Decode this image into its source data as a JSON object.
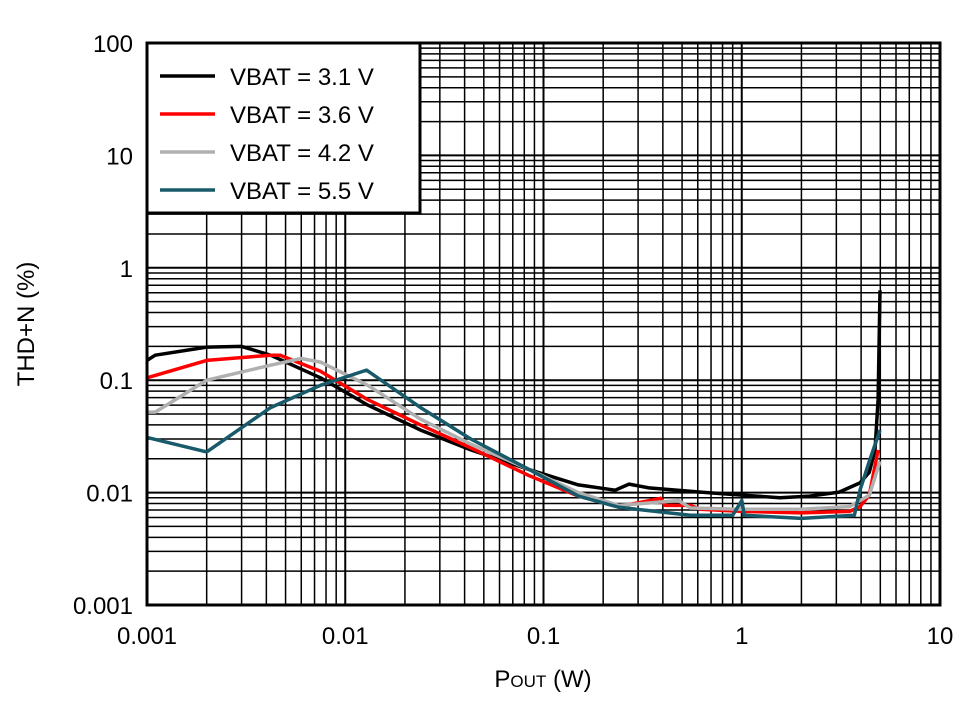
{
  "chart_data": {
    "type": "line",
    "title": "",
    "xlabel_main": "P",
    "xlabel_sub": "OUT",
    "xlabel_unit": " (W)",
    "ylabel": "THD+N (%)",
    "xscale": "log",
    "yscale": "log",
    "xlim": [
      0.001,
      10
    ],
    "ylim": [
      0.001,
      100
    ],
    "grid": true,
    "legend_placement": "top-left",
    "x_ticks": [
      {
        "v": 0.001,
        "label": "0.001"
      },
      {
        "v": 0.01,
        "label": "0.01"
      },
      {
        "v": 0.1,
        "label": "0.1"
      },
      {
        "v": 1,
        "label": "1"
      },
      {
        "v": 10,
        "label": "10"
      }
    ],
    "y_ticks": [
      {
        "v": 0.001,
        "label": "0.001"
      },
      {
        "v": 0.01,
        "label": "0.01"
      },
      {
        "v": 0.1,
        "label": "0.1"
      },
      {
        "v": 1,
        "label": "1"
      },
      {
        "v": 10,
        "label": "10"
      },
      {
        "v": 100,
        "label": "100"
      }
    ],
    "series": [
      {
        "name": "VBAT = 3.1 V",
        "color": "#000000",
        "points": [
          [
            0.001,
            0.15
          ],
          [
            0.0011,
            0.167
          ],
          [
            0.002,
            0.197
          ],
          [
            0.003,
            0.2
          ],
          [
            0.0042,
            0.167
          ],
          [
            0.0075,
            0.105
          ],
          [
            0.013,
            0.06
          ],
          [
            0.024,
            0.036
          ],
          [
            0.043,
            0.024
          ],
          [
            0.085,
            0.016
          ],
          [
            0.15,
            0.0117
          ],
          [
            0.23,
            0.0105
          ],
          [
            0.27,
            0.0119
          ],
          [
            0.34,
            0.011
          ],
          [
            0.62,
            0.0101
          ],
          [
            1.0,
            0.0095
          ],
          [
            1.56,
            0.009
          ],
          [
            2.2,
            0.0093
          ],
          [
            3.1,
            0.0101
          ],
          [
            3.95,
            0.0122
          ],
          [
            4.4,
            0.0152
          ],
          [
            4.7,
            0.024
          ],
          [
            4.87,
            0.067
          ],
          [
            4.98,
            0.63
          ]
        ]
      },
      {
        "name": "VBAT = 3.6 V",
        "color": "#ff0000",
        "points": [
          [
            0.001,
            0.105
          ],
          [
            0.002,
            0.15
          ],
          [
            0.0042,
            0.167
          ],
          [
            0.0047,
            0.167
          ],
          [
            0.0075,
            0.12
          ],
          [
            0.013,
            0.067
          ],
          [
            0.024,
            0.04
          ],
          [
            0.043,
            0.025
          ],
          [
            0.085,
            0.0141
          ],
          [
            0.15,
            0.0093
          ],
          [
            0.24,
            0.0075
          ],
          [
            0.39,
            0.0089
          ],
          [
            0.41,
            0.0077
          ],
          [
            0.55,
            0.0077
          ],
          [
            0.62,
            0.0071
          ],
          [
            1.0,
            0.0068
          ],
          [
            2.0,
            0.0066
          ],
          [
            3.5,
            0.0068
          ],
          [
            3.95,
            0.0075
          ],
          [
            4.4,
            0.0095
          ],
          [
            4.87,
            0.024
          ]
        ]
      },
      {
        "name": "VBAT = 4.2 V",
        "color": "#b0b0b0",
        "points": [
          [
            0.001,
            0.052
          ],
          [
            0.0011,
            0.052
          ],
          [
            0.002,
            0.1
          ],
          [
            0.0042,
            0.136
          ],
          [
            0.006,
            0.156
          ],
          [
            0.0075,
            0.145
          ],
          [
            0.013,
            0.09
          ],
          [
            0.024,
            0.045
          ],
          [
            0.043,
            0.027
          ],
          [
            0.085,
            0.016
          ],
          [
            0.15,
            0.01
          ],
          [
            0.24,
            0.0077
          ],
          [
            0.48,
            0.0085
          ],
          [
            0.55,
            0.0073
          ],
          [
            1.0,
            0.0071
          ],
          [
            2.0,
            0.0071
          ],
          [
            3.5,
            0.0075
          ],
          [
            4.4,
            0.0095
          ],
          [
            4.98,
            0.019
          ]
        ]
      },
      {
        "name": "VBAT = 5.5 V",
        "color": "#185a6a",
        "points": [
          [
            0.001,
            0.031
          ],
          [
            0.002,
            0.023
          ],
          [
            0.0042,
            0.057
          ],
          [
            0.0075,
            0.09
          ],
          [
            0.0128,
            0.123
          ],
          [
            0.024,
            0.057
          ],
          [
            0.043,
            0.03
          ],
          [
            0.085,
            0.016
          ],
          [
            0.15,
            0.0093
          ],
          [
            0.24,
            0.0074
          ],
          [
            0.55,
            0.0063
          ],
          [
            0.9,
            0.0063
          ],
          [
            1.0,
            0.0085
          ],
          [
            1.03,
            0.0063
          ],
          [
            2.0,
            0.0059
          ],
          [
            3.7,
            0.0063
          ],
          [
            3.95,
            0.0105
          ],
          [
            4.4,
            0.019
          ],
          [
            4.98,
            0.036
          ]
        ]
      }
    ]
  }
}
